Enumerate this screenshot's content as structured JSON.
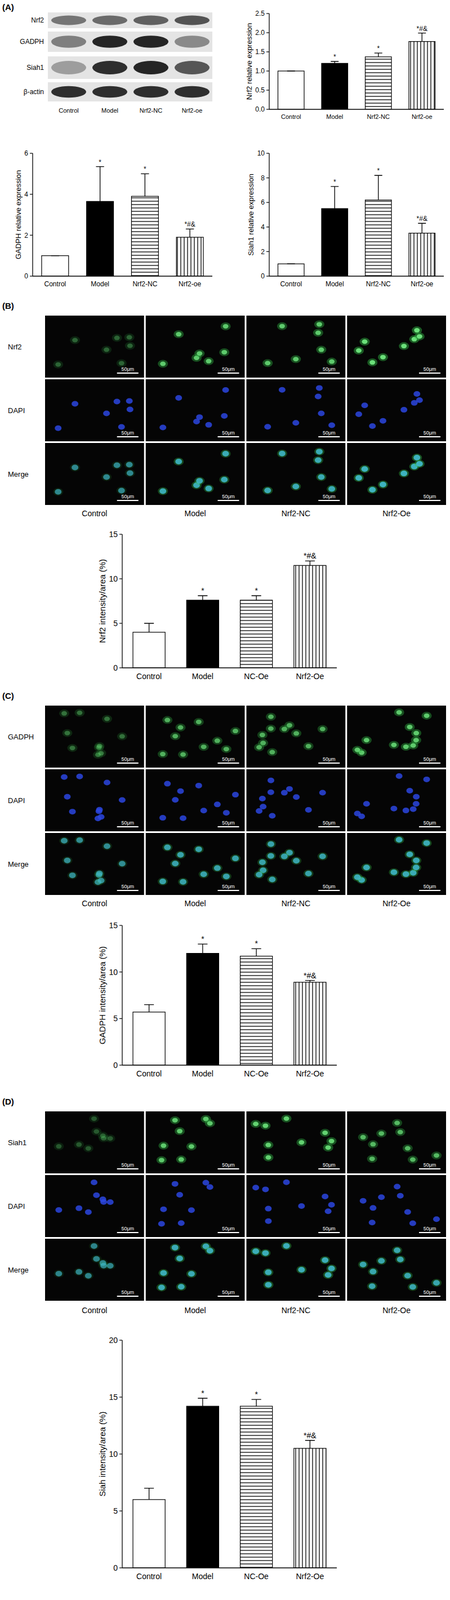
{
  "panel_labels": [
    "(A)",
    "(B)",
    "(C)",
    "(D)"
  ],
  "blot": {
    "rows": [
      "Nrf2",
      "GADPH",
      "Siah1",
      "β-actin"
    ],
    "columns": [
      "Control",
      "Model",
      "Nrf2-NC",
      "Nrf2-oe"
    ]
  },
  "micrographs": [
    {
      "rows": [
        "Nrf2",
        "DAPI",
        "Merge"
      ],
      "columns": [
        "Control",
        "Model",
        "Nrf2-NC",
        "Nrf2-Oe"
      ],
      "scale_bar": "50μm"
    },
    {
      "rows": [
        "GADPH",
        "DAPI",
        "Merge"
      ],
      "columns": [
        "Control",
        "Model",
        "Nrf2-NC",
        "Nrf2-Oe"
      ],
      "scale_bar": "50μm"
    },
    {
      "rows": [
        "Siah1",
        "DAPI",
        "Merge"
      ],
      "columns": [
        "Control",
        "Model",
        "Nrf2-NC",
        "Nrf2-Oe"
      ],
      "scale_bar": "50μm"
    }
  ],
  "chart_data": [
    {
      "type": "bar",
      "ylabel": "Nrf2 relative expression",
      "categories": [
        "Control",
        "Model",
        "Nrf2-NC",
        "Nrf2-oe"
      ],
      "values": [
        1.0,
        1.2,
        1.37,
        1.77
      ],
      "errors": [
        0,
        0.05,
        0.1,
        0.22
      ],
      "annotations": [
        null,
        "*",
        "*",
        "*#&"
      ],
      "ylim": [
        0,
        2.5
      ],
      "yticks": [
        {
          "value": 0,
          "label": "0.0"
        },
        0.5,
        {
          "value": 1,
          "label": "1.0"
        },
        1.5,
        {
          "value": 2,
          "label": "2.0"
        },
        2.5
      ]
    },
    {
      "type": "bar",
      "ylabel": "GADPH relative expression",
      "categories": [
        "Control",
        "Model",
        "Nrf2-NC",
        "Nrf2-oe"
      ],
      "values": [
        1.0,
        3.65,
        3.9,
        1.9
      ],
      "errors": [
        0,
        1.7,
        1.1,
        0.4
      ],
      "annotations": [
        null,
        "*",
        "*",
        "*#&"
      ],
      "ylim": [
        0,
        6
      ],
      "yticks": [
        0,
        2,
        4,
        6
      ]
    },
    {
      "type": "bar",
      "ylabel": "Siah1 relative expression",
      "categories": [
        "Control",
        "Model",
        "Nrf2-NC",
        "Nrf2-oe"
      ],
      "values": [
        1.0,
        5.5,
        6.2,
        3.5
      ],
      "errors": [
        0,
        1.8,
        2.0,
        0.8
      ],
      "annotations": [
        null,
        "*",
        "*",
        "*#&"
      ],
      "ylim": [
        0,
        10
      ],
      "yticks": [
        0,
        2,
        4,
        6,
        8,
        10
      ]
    },
    {
      "type": "bar",
      "ylabel": "Nrf2 intensity/area (%)",
      "categories": [
        "Control",
        "Model",
        "NC-Oe",
        "Nrf2-Oe"
      ],
      "values": [
        4.0,
        7.6,
        7.6,
        11.5
      ],
      "errors": [
        1.0,
        0.5,
        0.5,
        0.5
      ],
      "annotations": [
        null,
        "*",
        "*",
        "*#&"
      ],
      "ylim": [
        0,
        15
      ],
      "yticks": [
        0,
        5,
        10,
        15
      ]
    },
    {
      "type": "bar",
      "ylabel": "GADPH intensity/area (%)",
      "categories": [
        "Control",
        "Model",
        "NC-Oe",
        "Nrf2-Oe"
      ],
      "values": [
        5.7,
        12.0,
        11.7,
        8.9
      ],
      "errors": [
        0.8,
        1.0,
        0.8,
        0.2
      ],
      "annotations": [
        null,
        "*",
        "*",
        "*#&"
      ],
      "ylim": [
        0,
        15
      ],
      "yticks": [
        0,
        5,
        10,
        15
      ]
    },
    {
      "type": "bar",
      "ylabel": "Siah intensity/area (%)",
      "categories": [
        "Control",
        "Model",
        "NC-Oe",
        "Nrf2-Oe"
      ],
      "values": [
        6.0,
        14.2,
        14.2,
        10.5
      ],
      "errors": [
        1.0,
        0.7,
        0.6,
        0.7
      ],
      "annotations": [
        null,
        "*",
        "*",
        "*#&"
      ],
      "ylim": [
        0,
        20
      ],
      "yticks": [
        0,
        5,
        10,
        15,
        20
      ]
    }
  ]
}
